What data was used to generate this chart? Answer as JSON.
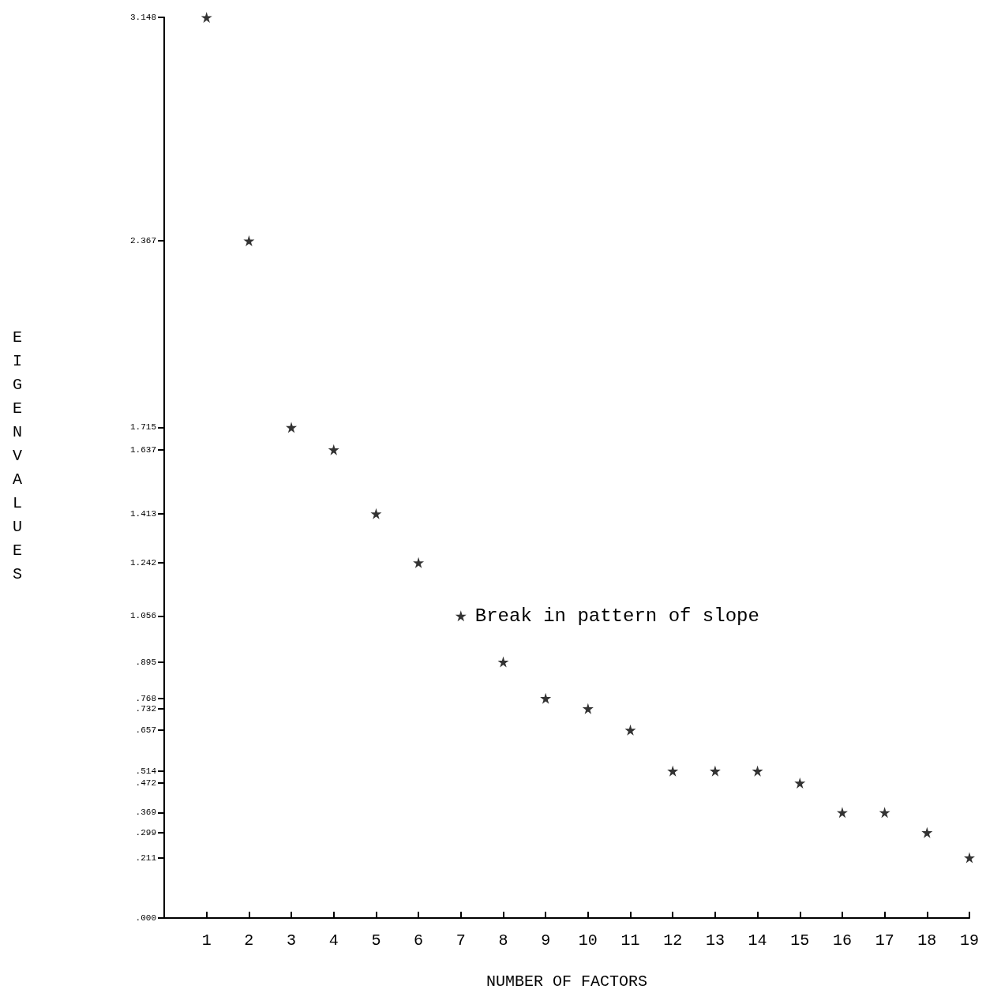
{
  "chart_data": {
    "type": "scatter",
    "xlabel": "NUMBER OF FACTORS",
    "ylabel": "EIGENVALUES",
    "x": [
      1,
      2,
      3,
      4,
      5,
      6,
      7,
      8,
      9,
      10,
      11,
      12,
      13,
      14,
      15,
      16,
      17,
      18,
      19
    ],
    "values": [
      3.148,
      2.367,
      1.715,
      1.637,
      1.413,
      1.242,
      1.056,
      0.895,
      0.768,
      0.732,
      0.657,
      0.514,
      0.514,
      0.514,
      0.472,
      0.369,
      0.369,
      0.299,
      0.211
    ],
    "color": "#000000",
    "marker": "star",
    "grid": false,
    "xlim": [
      0,
      19
    ],
    "xticks": [
      1,
      2,
      3,
      4,
      5,
      6,
      7,
      8,
      9,
      10,
      11,
      12,
      13,
      14,
      15,
      16,
      17,
      18,
      19
    ],
    "ylim": [
      0,
      3.148
    ],
    "yticks": [
      {
        "value": 0,
        "label": ".000"
      },
      {
        "value": 0.211,
        "label": ".211"
      },
      {
        "value": 0.299,
        "label": ".299"
      },
      {
        "value": 0.369,
        "label": ".369"
      },
      {
        "value": 0.472,
        "label": ".472"
      },
      {
        "value": 0.514,
        "label": ".514"
      },
      {
        "value": 0.657,
        "label": ".657"
      },
      {
        "value": 0.732,
        "label": ".732"
      },
      {
        "value": 0.768,
        "label": ".768"
      },
      {
        "value": 0.895,
        "label": ".895"
      },
      1.056,
      1.242,
      1.413,
      1.637,
      1.715,
      2.367,
      3.148
    ],
    "annotations": [
      {
        "text": "Break in pattern of slope",
        "x": 7,
        "y": 1.056
      }
    ]
  }
}
